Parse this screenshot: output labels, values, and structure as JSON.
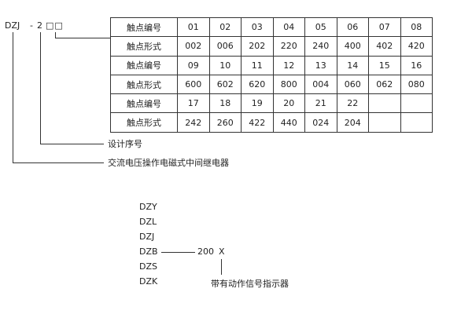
{
  "model_code": {
    "prefix": "DZJ",
    "dash": "-",
    "design_no": "2",
    "contact_boxes": "□□"
  },
  "contact_table": {
    "rows": [
      [
        "触点编号",
        "01",
        "02",
        "03",
        "04",
        "05",
        "06",
        "07",
        "08"
      ],
      [
        "触点形式",
        "002",
        "006",
        "202",
        "220",
        "240",
        "400",
        "402",
        "420"
      ],
      [
        "触点编号",
        "09",
        "10",
        "11",
        "12",
        "13",
        "14",
        "15",
        "16"
      ],
      [
        "触点形式",
        "600",
        "602",
        "620",
        "800",
        "004",
        "060",
        "062",
        "080"
      ],
      [
        "触点编号",
        "17",
        "18",
        "19",
        "20",
        "21",
        "22",
        "",
        ""
      ],
      [
        "触点形式",
        "242",
        "260",
        "422",
        "440",
        "024",
        "204",
        "",
        ""
      ]
    ]
  },
  "labels": {
    "design_serial": "设计序号",
    "relay_type": "交流电压操作电磁式中间继电器"
  },
  "series_list": [
    "DZY",
    "DZL",
    "DZJ",
    "DZB",
    "DZS",
    "DZK"
  ],
  "variant": {
    "code": "200",
    "suffix": "X",
    "suffix_note": "带有动作信号指示器"
  }
}
